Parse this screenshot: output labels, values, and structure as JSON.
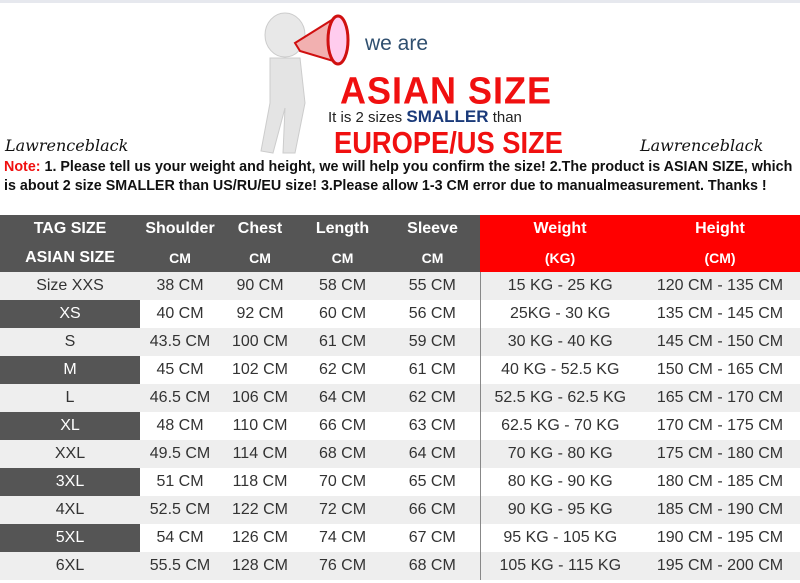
{
  "banner": {
    "we_are": "we are",
    "asian_size": "ASIAN SIZE",
    "it_is": "It is 2 sizes",
    "smaller": "SMALLER",
    "than": "than",
    "europe_us": "EUROPE/US SIZE"
  },
  "brand": "Lawrenceblack",
  "note": {
    "label": "Note:",
    "text": " 1. Please tell us your weight and height, we will help you confirm the size!  2.The product is ASIAN SIZE, which is about 2 size SMALLER than US/RU/EU size!  3.Please allow 1-3 CM error due to manualmeasurement. Thanks !"
  },
  "colors": {
    "header_gray": "#555555",
    "header_red": "#ff0000",
    "accent_red": "#f01010"
  },
  "table": {
    "headers": [
      [
        "TAG SIZE",
        "Shoulder",
        "Chest",
        "Length",
        "Sleeve",
        "Weight",
        "Height"
      ],
      [
        "ASIAN SIZE",
        "CM",
        "CM",
        "CM",
        "CM",
        "(KG)",
        "(CM)"
      ]
    ],
    "rows": [
      [
        "Size XXS",
        "38 CM",
        "90 CM",
        "58 CM",
        "55 CM",
        "15 KG - 25 KG",
        "120 CM  - 135 CM"
      ],
      [
        "XS",
        "40 CM",
        "92 CM",
        "60 CM",
        "56 CM",
        "25KG  - 30 KG",
        "135 CM - 145 CM"
      ],
      [
        "S",
        "43.5 CM",
        "100 CM",
        "61 CM",
        "59 CM",
        "30 KG - 40 KG",
        "145 CM  - 150 CM"
      ],
      [
        "M",
        "45 CM",
        "102 CM",
        "62 CM",
        "61 CM",
        "40 KG - 52.5 KG",
        "150 CM  - 165 CM"
      ],
      [
        "L",
        "46.5 CM",
        "106 CM",
        "64 CM",
        "62 CM",
        "52.5 KG  - 62.5 KG",
        "165 CM  - 170 CM"
      ],
      [
        "XL",
        "48 CM",
        "110 CM",
        "66 CM",
        "63 CM",
        "62.5 KG - 70 KG",
        "170 CM  - 175 CM"
      ],
      [
        "XXL",
        "49.5 CM",
        "114 CM",
        "68 CM",
        "64 CM",
        "70 KG  - 80  KG",
        "175 CM  - 180 CM"
      ],
      [
        "3XL",
        "51 CM",
        "118 CM",
        "70 CM",
        "65 CM",
        "80 KG  - 90  KG",
        "180 CM  - 185 CM"
      ],
      [
        "4XL",
        "52.5 CM",
        "122 CM",
        "72 CM",
        "66 CM",
        "90 KG  - 95 KG",
        "185 CM  - 190 CM"
      ],
      [
        "5XL",
        "54 CM",
        "126 CM",
        "74 CM",
        "67 CM",
        "95 KG  - 105 KG",
        "190 CM  - 195 CM"
      ],
      [
        "6XL",
        "55.5 CM",
        "128 CM",
        "76 CM",
        "68 CM",
        "105 KG - 115 KG",
        "195 CM  - 200 CM"
      ]
    ]
  }
}
